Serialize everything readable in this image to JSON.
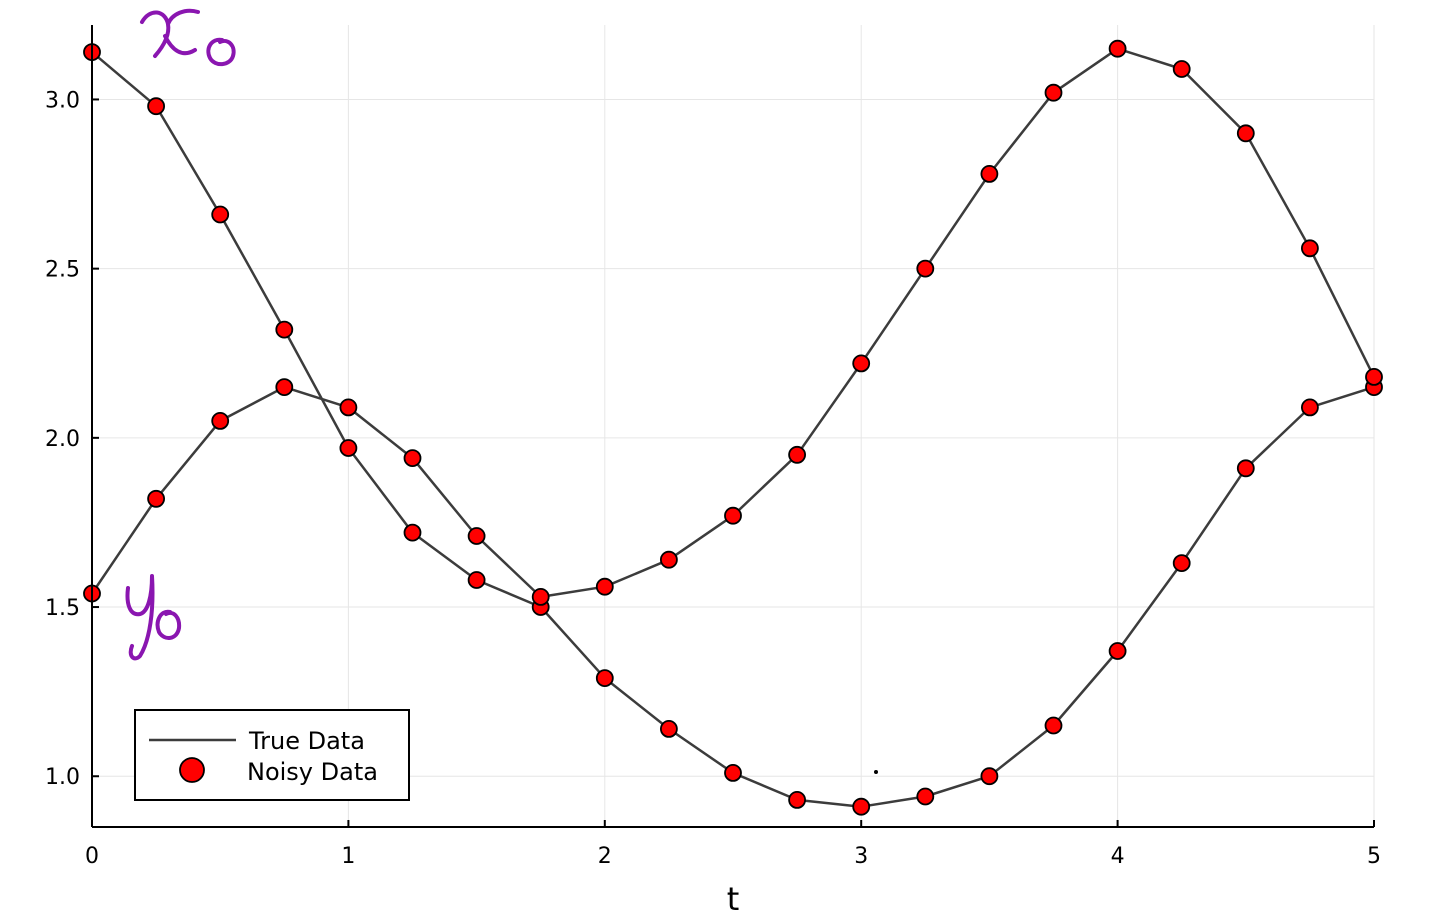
{
  "chart_data": {
    "type": "line",
    "xlabel": "t",
    "ylabel": "",
    "xlim": [
      0,
      5
    ],
    "ylim": [
      0.85,
      3.22
    ],
    "grid": true,
    "x_ticks": [
      0,
      1,
      2,
      3,
      4,
      5
    ],
    "x_tick_labels": [
      "0",
      "1",
      "2",
      "3",
      "4",
      "5"
    ],
    "y_ticks": [
      1.0,
      1.5,
      2.0,
      2.5,
      3.0
    ],
    "y_tick_labels": [
      "1.0",
      "1.5",
      "2.0",
      "2.5",
      "3.0"
    ],
    "x": [
      0,
      0.25,
      0.5,
      0.75,
      1.0,
      1.25,
      1.5,
      1.75,
      2.0,
      2.25,
      2.5,
      2.75,
      3.0,
      3.25,
      3.5,
      3.75,
      4.0,
      4.25,
      4.5,
      4.75,
      5.0
    ],
    "series": [
      {
        "values": [
          3.14,
          2.98,
          2.66,
          2.32,
          1.97,
          1.72,
          1.58,
          1.5,
          1.29,
          1.14,
          1.01,
          0.93,
          0.91,
          0.94,
          1.0,
          1.15,
          1.37,
          1.63,
          1.91,
          2.09,
          2.15
        ]
      },
      {
        "values": [
          1.54,
          1.82,
          2.05,
          2.15,
          2.09,
          1.94,
          1.71,
          1.53,
          1.56,
          1.64,
          1.77,
          1.95,
          2.22,
          2.5,
          2.78,
          3.02,
          3.15,
          3.09,
          2.9,
          2.56,
          2.18
        ]
      }
    ],
    "legend": {
      "position": "bottom-left",
      "entries": [
        {
          "label": "True Data",
          "style": "line"
        },
        {
          "label": "Noisy Data",
          "style": "marker"
        }
      ]
    },
    "annotations": [
      "x₀",
      "y₀"
    ],
    "colors": {
      "line": "#3c3c3c",
      "marker_fill": "#ff0000",
      "marker_edge": "#000000",
      "grid": "#e6e6e6",
      "annotation": "#8a16b0"
    }
  }
}
